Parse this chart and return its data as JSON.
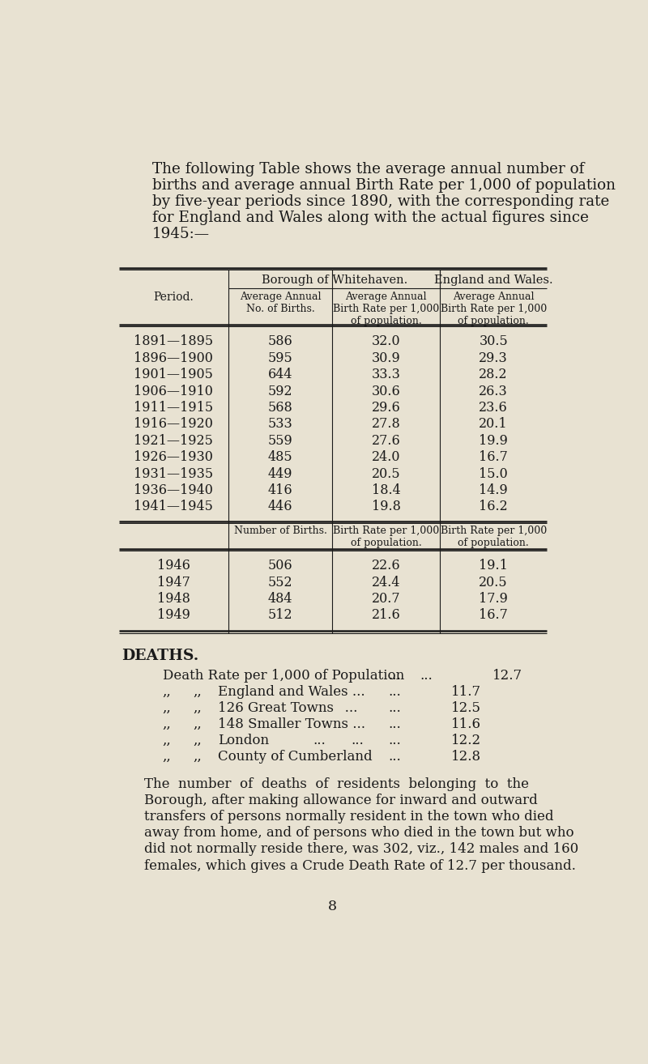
{
  "bg_color": "#e8e2d2",
  "text_color": "#1a1a1a",
  "intro_line1": "The following Table shows the average annual number of",
  "intro_line2": "births and average annual Birth Rate per 1,000 of population",
  "intro_line3": "by five-year periods since 1890, with the corresponding rate",
  "intro_line4": "for England and Wales along with the actual figures since",
  "intro_line5": "1945:—",
  "table1_header1": "Borough of Whitehaven.",
  "table1_header2": "England and Wales.",
  "table1_col1": "Period.",
  "table1_col2": "Average Annual\nNo. of Births.",
  "table1_col3": "Average Annual\nBirth Rate per 1,000\nof population.",
  "table1_col4": "Average Annual\nBirth Rate per 1,000\nof population.",
  "table1_rows": [
    [
      "1891—1895",
      "586",
      "32.0",
      "30.5"
    ],
    [
      "1896—1900",
      "595",
      "30.9",
      "29.3"
    ],
    [
      "1901—1905",
      "644",
      "33.3",
      "28.2"
    ],
    [
      "1906—1910",
      "592",
      "30.6",
      "26.3"
    ],
    [
      "1911—1915",
      "568",
      "29.6",
      "23.6"
    ],
    [
      "1916—1920",
      "533",
      "27.8",
      "20.1"
    ],
    [
      "1921—1925",
      "559",
      "27.6",
      "19.9"
    ],
    [
      "1926—1930",
      "485",
      "24.0",
      "16.7"
    ],
    [
      "1931—1935",
      "449",
      "20.5",
      "15.0"
    ],
    [
      "1936—1940",
      "416",
      "18.4",
      "14.9"
    ],
    [
      "1941—1945",
      "446",
      "19.8",
      "16.2"
    ]
  ],
  "table2_col2": "Number of Births.",
  "table2_col3": "Birth Rate per 1,000\nof population.",
  "table2_col4": "Birth Rate per 1,000\nof population.",
  "table2_rows": [
    [
      "1946",
      "506",
      "22.6",
      "19.1"
    ],
    [
      "1947",
      "552",
      "24.4",
      "20.5"
    ],
    [
      "1948",
      "484",
      "20.7",
      "17.9"
    ],
    [
      "1949",
      "512",
      "21.6",
      "16.7"
    ]
  ],
  "deaths_header": "DEATHS.",
  "death_row1_label": "Death Rate per 1,000 of Population",
  "death_row1_dots1": "...",
  "death_row1_dots2": "...",
  "death_row1_val": "12.7",
  "death_row2_label": "England and Wales ...",
  "death_row2_dots": "...",
  "death_row2_val": "11.7",
  "death_row3_label": "126 Great Towns  ...",
  "death_row3_dots": "...",
  "death_row3_val": "12.5",
  "death_row4_label": "148 Smaller Towns ...",
  "death_row4_dots": "...",
  "death_row4_val": "11.6",
  "death_row5_label": "London",
  "death_row5_dots1": "...",
  "death_row5_dots2": "...",
  "death_row5_dots3": "...",
  "death_row5_val": "12.2",
  "death_row6_label": "County of Cumberland",
  "death_row6_dots": "...",
  "death_row6_val": "12.8",
  "deaths_note_line1": "The  number  of  deaths  of  residents  belonging  to  the",
  "deaths_note_line2": "Borough, after making allowance for inward and outward",
  "deaths_note_line3": "transfers of persons normally resident in the town who died",
  "deaths_note_line4": "away from home, and of persons who died in the town but who",
  "deaths_note_line5": "did not normally reside there, was 302, viz., 142 males and 160",
  "deaths_note_line6": "females, which gives a Crude Death Rate of 12.7 per thousand.",
  "page_number": "8",
  "comma_sym": ",,"
}
